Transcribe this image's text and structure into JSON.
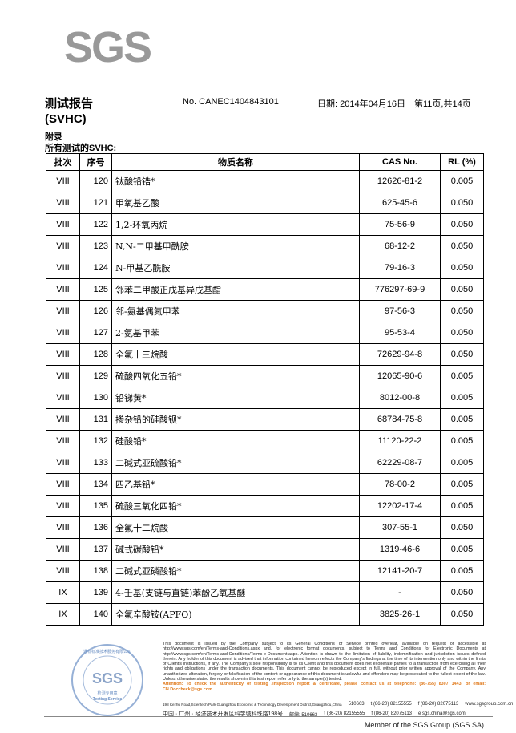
{
  "logo": "SGS",
  "header": {
    "title": "测试报告",
    "subtitle": "(SVHC)",
    "report_no": "No. CANEC1404843101",
    "date": "日期: 2014年04月16日",
    "page": "第11页,共14页"
  },
  "section": {
    "label": "附录",
    "caption": "所有测试的SVHC:"
  },
  "table": {
    "columns": [
      "批次",
      "序号",
      "物质名称",
      "CAS No.",
      "RL (%)"
    ],
    "rows": [
      [
        "VIII",
        "120",
        "钛酸铅锆*",
        "12626-81-2",
        "0.005"
      ],
      [
        "VIII",
        "121",
        "甲氧基乙酸",
        "625-45-6",
        "0.050"
      ],
      [
        "VIII",
        "122",
        "1,2-环氧丙烷",
        "75-56-9",
        "0.050"
      ],
      [
        "VIII",
        "123",
        "N,N-二甲基甲酰胺",
        "68-12-2",
        "0.050"
      ],
      [
        "VIII",
        "124",
        "N-甲基乙酰胺",
        "79-16-3",
        "0.050"
      ],
      [
        "VIII",
        "125",
        "邻苯二甲酸正戊基异戊基酯",
        "776297-69-9",
        "0.050"
      ],
      [
        "VIII",
        "126",
        "邻-氨基偶氮甲苯",
        "97-56-3",
        "0.050"
      ],
      [
        "VIII",
        "127",
        "2-氨基甲苯",
        "95-53-4",
        "0.050"
      ],
      [
        "VIII",
        "128",
        "全氟十三烷酸",
        "72629-94-8",
        "0.050"
      ],
      [
        "VIII",
        "129",
        "硫酸四氧化五铅*",
        "12065-90-6",
        "0.005"
      ],
      [
        "VIII",
        "130",
        "铅锑黄*",
        "8012-00-8",
        "0.005"
      ],
      [
        "VIII",
        "131",
        "掺杂铅的硅酸钡*",
        "68784-75-8",
        "0.005"
      ],
      [
        "VIII",
        "132",
        "硅酸铅*",
        "11120-22-2",
        "0.005"
      ],
      [
        "VIII",
        "133",
        "二碱式亚硫酸铅*",
        "62229-08-7",
        "0.005"
      ],
      [
        "VIII",
        "134",
        "四乙基铅*",
        "78-00-2",
        "0.005"
      ],
      [
        "VIII",
        "135",
        "硫酸三氧化四铅*",
        "12202-17-4",
        "0.005"
      ],
      [
        "VIII",
        "136",
        "全氟十二烷酸",
        "307-55-1",
        "0.050"
      ],
      [
        "VIII",
        "137",
        "碱式碳酸铅*",
        "1319-46-6",
        "0.005"
      ],
      [
        "VIII",
        "138",
        "二碱式亚磷酸铅*",
        "12141-20-7",
        "0.005"
      ],
      [
        "IX",
        "139",
        "4-壬基(支链与直链)苯酚乙氧基醚",
        "-",
        "0.050"
      ],
      [
        "IX",
        "140",
        "全氟辛酸铵(APFO)",
        "3825-26-1",
        "0.050"
      ]
    ]
  },
  "stamp": {
    "text": "通标标准技术服务有限公司",
    "center": "SGS",
    "label": "检测专用章",
    "label_en": "Testing Service"
  },
  "footer": {
    "disclaimer": "This document is issued by the Company subject to its General Conditions of Service printed overleaf, available on request or accessible at http://www.sgs.com/en/Terms-and-Conditions.aspx and, for electronic format documents, subject to Terms and Conditions for Electronic Documents at http://www.sgs.com/en/Terms-and-Conditions/Terms-e-Document.aspx. Attention is drawn to the limitation of liability, indemnification and jurisdiction issues defined therein. Any holder of this document is advised that information contained hereon reflects the Company's findings at the time of its intervention only and within the limits of Client's instructions, if any. The Company's sole responsibility is to its Client and this document does not exonerate parties to a transaction from exercising all their rights and obligations under the transaction documents. This document cannot be reproduced except in full, without prior written approval of the Company. Any unauthorized alteration, forgery or falsification of the content or appearance of this document is unlawful and offenders may be prosecuted to the fullest extent of the law. Unless otherwise stated the results shown in this test report refer only to the sample(s) tested.",
    "attention": "Attention: To check the authenticity of testing /inspection report & certificate, please contact us at telephone: (86-755) 8307 1443, or email: CN.Doccheck@sgs.com",
    "address_en": "198 Kezhu Road,Scientech Park Guangzhou Economic & Technology Development District,Guangzhou,China",
    "postcode_en": "510663",
    "phone_en": "t (86-20) 82155555",
    "fax_en": "f (86-20) 82075113",
    "web": "www.sgsgroup.com.cn",
    "address_cn": "中国 · 广州 · 经济技术开发区科学城科珠路198号",
    "postcode_cn": "邮编: 510663",
    "phone_cn": "t (86-20) 82155555",
    "fax_cn": "f (86-20) 82075113",
    "email": "e sgs.china@sgs.com",
    "member": "Member of the SGS Group (SGS SA)"
  },
  "colors": {
    "attention": "#e07a1c",
    "logo": "#999999"
  }
}
